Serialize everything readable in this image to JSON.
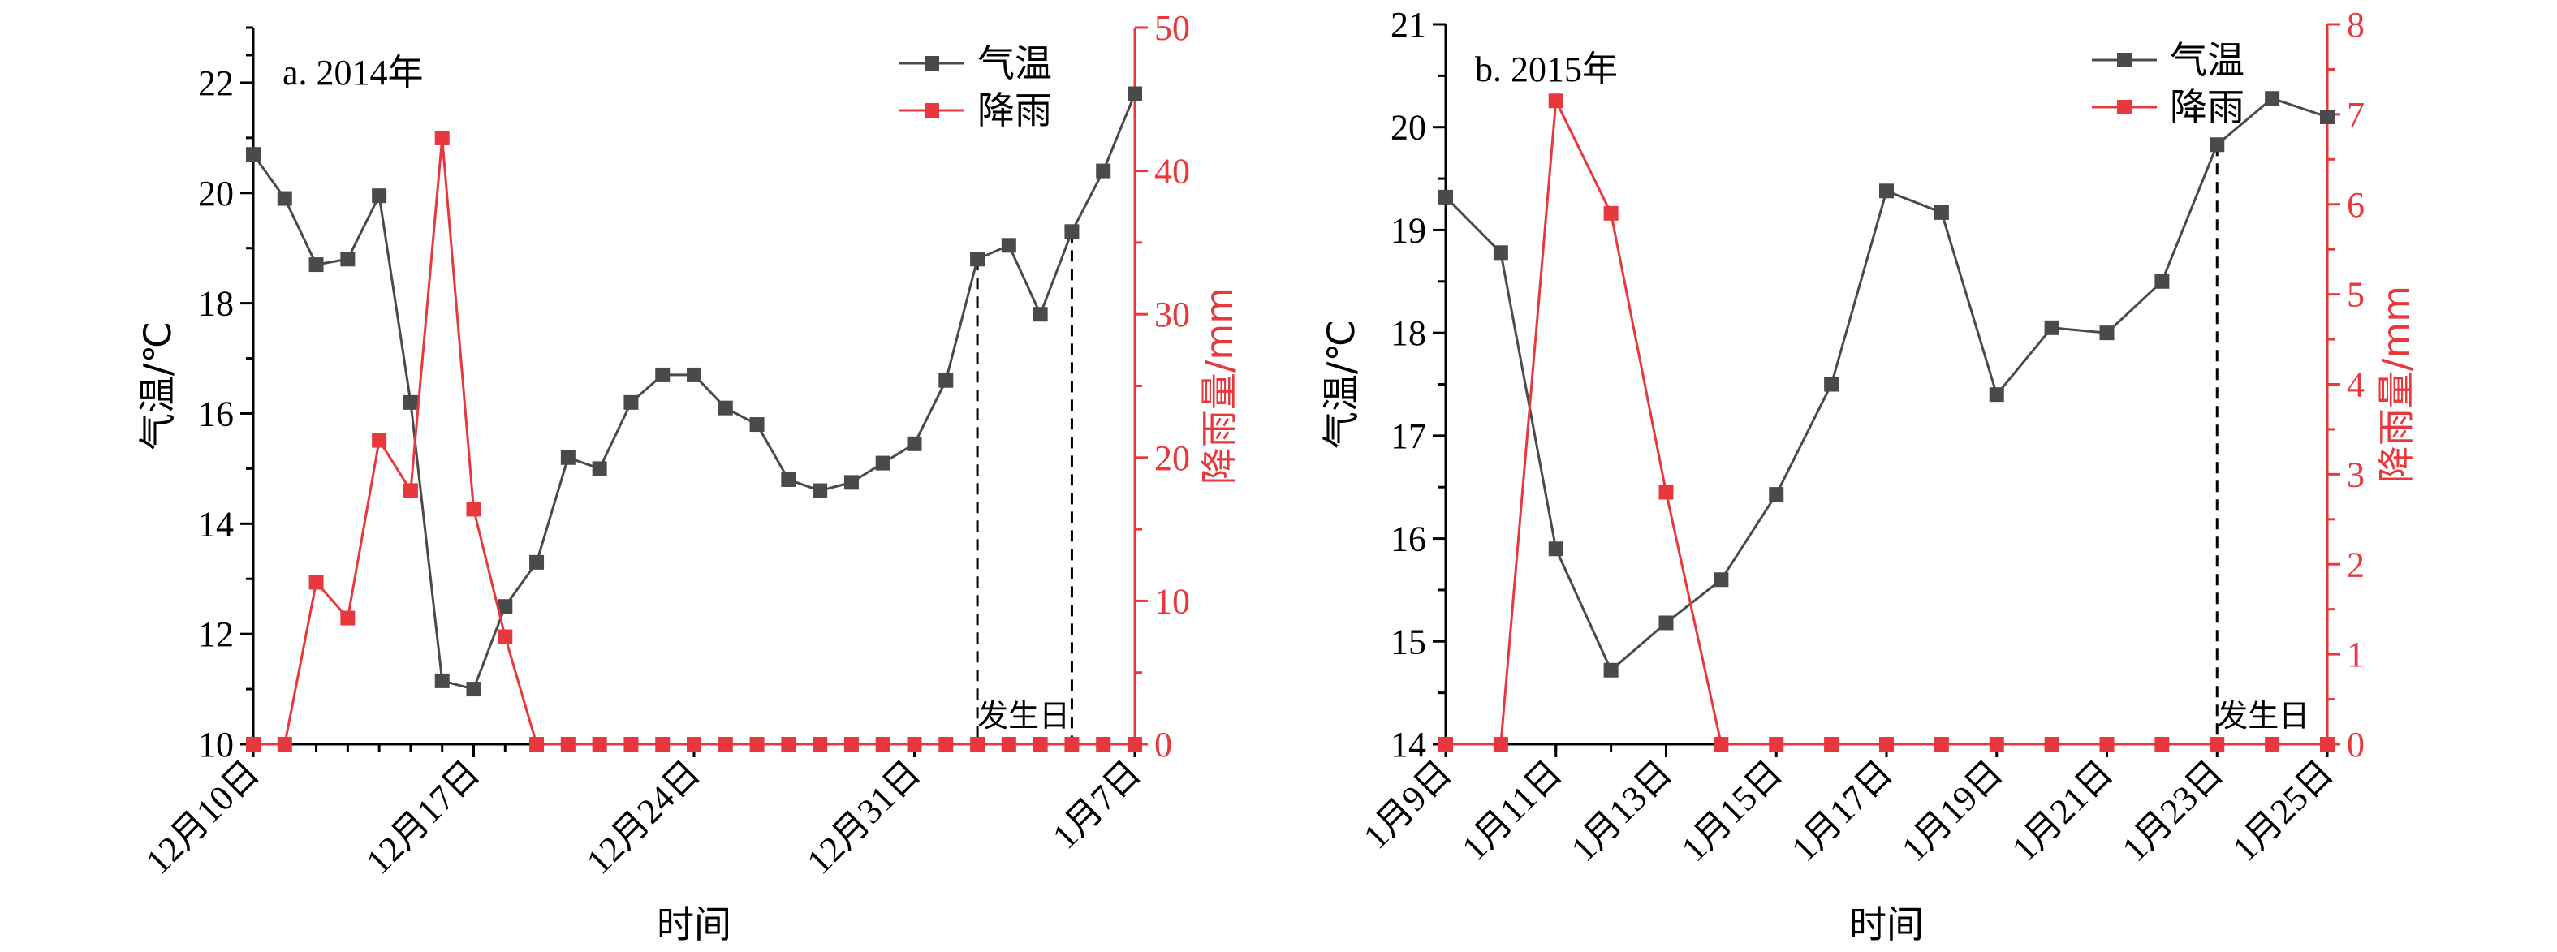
{
  "chart_data": [
    {
      "type": "line",
      "panel_label": "a. 2014年",
      "xlabel": "时间",
      "ylabel": "气温/℃",
      "y2label": "降雨量/mm",
      "ylim": [
        10,
        23
      ],
      "y2lim": [
        0,
        50
      ],
      "yticks": [
        "10",
        "12",
        "14",
        "16",
        "18",
        "20",
        "22"
      ],
      "y2ticks": [
        "0",
        "10",
        "20",
        "30",
        "40",
        "50"
      ],
      "xticks": [
        {
          "index": 0,
          "label": "12月10日"
        },
        {
          "index": 7,
          "label": "12月17日"
        },
        {
          "index": 14,
          "label": "12月24日"
        },
        {
          "index": 21,
          "label": "12月31日"
        },
        {
          "index": 28,
          "label": "1月7日"
        }
      ],
      "x_count": 29,
      "legend": {
        "position": "top-right",
        "entries": [
          "气温",
          "降雨"
        ]
      },
      "series": [
        {
          "name": "气温",
          "axis": "left",
          "color": "#4a4a4a",
          "values": [
            20.7,
            19.9,
            18.7,
            18.8,
            19.95,
            16.2,
            11.15,
            11.0,
            12.5,
            13.3,
            15.2,
            15.0,
            16.2,
            16.7,
            16.7,
            16.1,
            15.8,
            14.8,
            14.6,
            14.75,
            15.1,
            15.45,
            16.6,
            18.8,
            19.05,
            17.8,
            19.3,
            20.4,
            21.8
          ]
        },
        {
          "name": "降雨",
          "axis": "right",
          "color": "#e8383d",
          "values": [
            0,
            0,
            11.3,
            8.8,
            21.2,
            17.7,
            42.3,
            16.4,
            7.5,
            0,
            0,
            0,
            0,
            0,
            0,
            0,
            0,
            0,
            0,
            0,
            0,
            0,
            0,
            0,
            0,
            0,
            0,
            0,
            0
          ]
        }
      ],
      "reference_lines": [
        23,
        26
      ],
      "annotation": "发生日"
    },
    {
      "type": "line",
      "panel_label": "b. 2015年",
      "xlabel": "时间",
      "ylabel": "气温/℃",
      "y2label": "降雨量/mm",
      "ylim": [
        14,
        21
      ],
      "y2lim": [
        0,
        8
      ],
      "yticks": [
        "14",
        "15",
        "16",
        "17",
        "18",
        "19",
        "20",
        "21"
      ],
      "y2ticks": [
        "0",
        "1",
        "2",
        "3",
        "4",
        "5",
        "6",
        "7",
        "8"
      ],
      "xticks": [
        {
          "index": 0,
          "label": "1月9日"
        },
        {
          "index": 2,
          "label": "1月11日"
        },
        {
          "index": 4,
          "label": "1月13日"
        },
        {
          "index": 6,
          "label": "1月15日"
        },
        {
          "index": 8,
          "label": "1月17日"
        },
        {
          "index": 10,
          "label": "1月19日"
        },
        {
          "index": 12,
          "label": "1月21日"
        },
        {
          "index": 14,
          "label": "1月23日"
        },
        {
          "index": 16,
          "label": "1月25日"
        }
      ],
      "x_count": 17,
      "legend": {
        "position": "top-right",
        "entries": [
          "气温",
          "降雨"
        ]
      },
      "series": [
        {
          "name": "气温",
          "axis": "left",
          "color": "#4a4a4a",
          "values": [
            19.32,
            18.78,
            15.9,
            14.72,
            15.18,
            15.6,
            16.43,
            17.5,
            19.38,
            19.17,
            17.4,
            18.05,
            18.0,
            18.5,
            19.83,
            20.28,
            20.1
          ]
        },
        {
          "name": "降雨",
          "axis": "right",
          "color": "#e8383d",
          "values": [
            0,
            0,
            7.15,
            5.9,
            2.8,
            0,
            0,
            0,
            0,
            0,
            0,
            0,
            0,
            0,
            0,
            0,
            0
          ]
        }
      ],
      "reference_lines": [
        14
      ],
      "annotation": "发生日"
    }
  ]
}
